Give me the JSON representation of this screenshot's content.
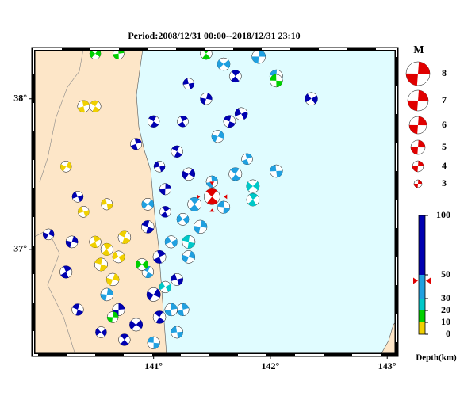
{
  "title": "Period:2008/12/31 00:00--2018/12/31 23:10",
  "xlim": [
    139.97,
    143.08
  ],
  "ylim": [
    36.3,
    38.33
  ],
  "lon_ticks": [
    {
      "value": 141,
      "label": "141°"
    },
    {
      "value": 142,
      "label": "142°"
    },
    {
      "value": 143,
      "label": "143°"
    }
  ],
  "lat_ticks": [
    {
      "value": 38,
      "label": "38°"
    },
    {
      "value": 37,
      "label": "37°"
    }
  ],
  "magnitude_legend": {
    "title": "M",
    "values": [
      8,
      7,
      6,
      5,
      4,
      3
    ]
  },
  "depth_scale": {
    "label": "Depth(km)",
    "ticks": [
      0,
      10,
      20,
      30,
      50,
      100
    ],
    "colors": [
      "#f0d000",
      "#00d000",
      "#00c8c8",
      "#20a0e0",
      "#0000b0"
    ]
  },
  "highlight_color": "#e00000",
  "highlight": 70,
  "events": [
    {
      "lon": 141.6,
      "lat": 38.23,
      "depth": 45,
      "mag": 4.5
    },
    {
      "lon": 141.9,
      "lat": 38.28,
      "depth": 40,
      "mag": 4.8
    },
    {
      "lon": 141.7,
      "lat": 38.15,
      "depth": 60,
      "mag": 4.3
    },
    {
      "lon": 142.05,
      "lat": 38.15,
      "depth": 35,
      "mag": 4.6
    },
    {
      "lon": 142.35,
      "lat": 38.0,
      "depth": 70,
      "mag": 4.5
    },
    {
      "lon": 141.45,
      "lat": 38.0,
      "depth": 60,
      "mag": 4.2
    },
    {
      "lon": 141.25,
      "lat": 37.85,
      "depth": 55,
      "mag": 4.0
    },
    {
      "lon": 141.65,
      "lat": 37.85,
      "depth": 60,
      "mag": 4.3
    },
    {
      "lon": 141.75,
      "lat": 37.9,
      "depth": 65,
      "mag": 4.5
    },
    {
      "lon": 141.55,
      "lat": 37.75,
      "depth": 30,
      "mag": 4.4
    },
    {
      "lon": 141.8,
      "lat": 37.6,
      "depth": 35,
      "mag": 4.0
    },
    {
      "lon": 141.2,
      "lat": 37.65,
      "depth": 50,
      "mag": 4.2
    },
    {
      "lon": 141.05,
      "lat": 37.55,
      "depth": 55,
      "mag": 4.0
    },
    {
      "lon": 141.3,
      "lat": 37.5,
      "depth": 60,
      "mag": 4.5
    },
    {
      "lon": 141.5,
      "lat": 37.45,
      "depth": 40,
      "mag": 4.2
    },
    {
      "lon": 141.7,
      "lat": 37.5,
      "depth": 45,
      "mag": 4.6
    },
    {
      "lon": 142.05,
      "lat": 37.52,
      "depth": 35,
      "mag": 4.5
    },
    {
      "lon": 141.85,
      "lat": 37.42,
      "depth": 25,
      "mag": 4.6
    },
    {
      "lon": 141.1,
      "lat": 37.4,
      "depth": 60,
      "mag": 4.1
    },
    {
      "lon": 141.35,
      "lat": 37.3,
      "depth": 30,
      "mag": 4.8
    },
    {
      "lon": 141.6,
      "lat": 37.28,
      "depth": 35,
      "mag": 4.4
    },
    {
      "lon": 141.25,
      "lat": 37.2,
      "depth": 35,
      "mag": 4.3
    },
    {
      "lon": 141.4,
      "lat": 37.15,
      "depth": 40,
      "mag": 4.7
    },
    {
      "lon": 141.1,
      "lat": 37.25,
      "depth": 55,
      "mag": 4.0
    },
    {
      "lon": 140.95,
      "lat": 37.15,
      "depth": 70,
      "mag": 4.5
    },
    {
      "lon": 141.15,
      "lat": 37.05,
      "depth": 35,
      "mag": 4.4
    },
    {
      "lon": 141.3,
      "lat": 36.95,
      "depth": 35,
      "mag": 4.5
    },
    {
      "lon": 141.05,
      "lat": 36.95,
      "depth": 60,
      "mag": 4.6
    },
    {
      "lon": 140.95,
      "lat": 36.85,
      "depth": 40,
      "mag": 4.2
    },
    {
      "lon": 141.2,
      "lat": 36.8,
      "depth": 50,
      "mag": 4.3
    },
    {
      "lon": 141.0,
      "lat": 36.7,
      "depth": 70,
      "mag": 4.8
    },
    {
      "lon": 141.25,
      "lat": 36.6,
      "depth": 45,
      "mag": 4.4
    },
    {
      "lon": 141.05,
      "lat": 36.55,
      "depth": 50,
      "mag": 4.5
    },
    {
      "lon": 141.2,
      "lat": 36.45,
      "depth": 40,
      "mag": 4.3
    },
    {
      "lon": 140.85,
      "lat": 36.5,
      "depth": 55,
      "mag": 4.6
    },
    {
      "lon": 140.7,
      "lat": 36.6,
      "depth": 65,
      "mag": 4.4
    },
    {
      "lon": 140.75,
      "lat": 36.4,
      "depth": 55,
      "mag": 4.2
    },
    {
      "lon": 141.0,
      "lat": 36.38,
      "depth": 30,
      "mag": 4.4
    },
    {
      "lon": 140.55,
      "lat": 36.45,
      "depth": 60,
      "mag": 4.0
    },
    {
      "lon": 140.6,
      "lat": 36.7,
      "depth": 45,
      "mag": 4.5
    },
    {
      "lon": 140.6,
      "lat": 37.0,
      "depth": 8,
      "mag": 4.4
    },
    {
      "lon": 140.55,
      "lat": 36.9,
      "depth": 5,
      "mag": 4.6
    },
    {
      "lon": 140.7,
      "lat": 36.95,
      "depth": 9,
      "mag": 4.3
    },
    {
      "lon": 140.65,
      "lat": 36.8,
      "depth": 7,
      "mag": 4.5
    },
    {
      "lon": 140.5,
      "lat": 37.05,
      "depth": 6,
      "mag": 4.2
    },
    {
      "lon": 140.75,
      "lat": 37.08,
      "depth": 8,
      "mag": 4.5
    },
    {
      "lon": 140.4,
      "lat": 37.25,
      "depth": 9,
      "mag": 4.0
    },
    {
      "lon": 140.25,
      "lat": 37.55,
      "depth": 5,
      "mag": 4.0
    },
    {
      "lon": 140.4,
      "lat": 37.95,
      "depth": 7,
      "mag": 4.3
    },
    {
      "lon": 140.5,
      "lat": 37.95,
      "depth": 8,
      "mag": 4.1
    },
    {
      "lon": 140.6,
      "lat": 37.3,
      "depth": 9,
      "mag": 4.1
    },
    {
      "lon": 140.5,
      "lat": 38.3,
      "depth": 12,
      "mag": 4.0
    },
    {
      "lon": 140.7,
      "lat": 38.3,
      "depth": 15,
      "mag": 4.0
    },
    {
      "lon": 141.45,
      "lat": 38.3,
      "depth": 15,
      "mag": 4.2
    },
    {
      "lon": 142.05,
      "lat": 38.12,
      "depth": 15,
      "mag": 4.5
    },
    {
      "lon": 140.9,
      "lat": 36.9,
      "depth": 15,
      "mag": 4.3
    },
    {
      "lon": 140.65,
      "lat": 36.55,
      "depth": 14,
      "mag": 4.0
    },
    {
      "lon": 141.85,
      "lat": 37.33,
      "depth": 25,
      "mag": 4.5
    },
    {
      "lon": 141.3,
      "lat": 37.05,
      "depth": 22,
      "mag": 4.6
    },
    {
      "lon": 141.1,
      "lat": 36.75,
      "depth": 25,
      "mag": 4.2
    },
    {
      "lon": 140.3,
      "lat": 37.05,
      "depth": 70,
      "mag": 4.3
    },
    {
      "lon": 140.25,
      "lat": 36.85,
      "depth": 60,
      "mag": 4.4
    },
    {
      "lon": 140.35,
      "lat": 36.6,
      "depth": 60,
      "mag": 4.2
    },
    {
      "lon": 140.35,
      "lat": 37.35,
      "depth": 70,
      "mag": 4.0
    },
    {
      "lon": 140.1,
      "lat": 37.1,
      "depth": 60,
      "mag": 4.0
    },
    {
      "lon": 140.85,
      "lat": 37.7,
      "depth": 60,
      "mag": 4.1
    },
    {
      "lon": 141.0,
      "lat": 37.85,
      "depth": 65,
      "mag": 4.2
    },
    {
      "lon": 141.3,
      "lat": 38.1,
      "depth": 70,
      "mag": 4.0
    },
    {
      "lon": 140.95,
      "lat": 37.3,
      "depth": 45,
      "mag": 4.3
    },
    {
      "lon": 141.15,
      "lat": 36.6,
      "depth": 35,
      "mag": 4.5
    },
    {
      "lon": 141.5,
      "lat": 37.35,
      "depth": 45,
      "mag": 5.5
    }
  ]
}
